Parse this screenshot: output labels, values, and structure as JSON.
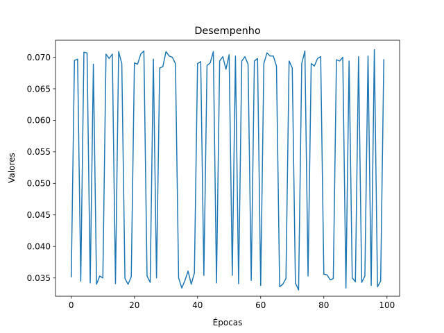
{
  "chart_data": {
    "type": "line",
    "title": "Desempenho",
    "xlabel": "Épocas",
    "ylabel": "Valores",
    "xlim": [
      -5,
      104
    ],
    "ylim": [
      0.0321,
      0.0727
    ],
    "xticks": [
      0,
      20,
      40,
      60,
      80,
      100
    ],
    "yticks": [
      0.035,
      0.04,
      0.045,
      0.05,
      0.055,
      0.06,
      0.065,
      0.07
    ],
    "ytick_labels": [
      "0.035",
      "0.040",
      "0.045",
      "0.050",
      "0.055",
      "0.060",
      "0.065",
      "0.070"
    ],
    "grid": false,
    "series": [
      {
        "color": "#1f77b4",
        "x": [
          0,
          1,
          2,
          3,
          4,
          5,
          6,
          7,
          8,
          9,
          10,
          11,
          12,
          13,
          14,
          15,
          16,
          17,
          18,
          19,
          20,
          21,
          22,
          23,
          24,
          25,
          26,
          27,
          28,
          29,
          30,
          31,
          32,
          33,
          34,
          35,
          36,
          37,
          38,
          39,
          40,
          41,
          42,
          43,
          44,
          45,
          46,
          47,
          48,
          49,
          50,
          51,
          52,
          53,
          54,
          55,
          56,
          57,
          58,
          59,
          60,
          61,
          62,
          63,
          64,
          65,
          66,
          67,
          68,
          69,
          70,
          71,
          72,
          73,
          74,
          75,
          76,
          77,
          78,
          79,
          80,
          81,
          82,
          83,
          84,
          85,
          86,
          87,
          88,
          89,
          90,
          91,
          92,
          93,
          94,
          95,
          96,
          97,
          98,
          99
        ],
        "values": [
          0.0352,
          0.0695,
          0.0697,
          0.0345,
          0.0708,
          0.0707,
          0.0342,
          0.0689,
          0.034,
          0.0353,
          0.035,
          0.0705,
          0.0698,
          0.0705,
          0.0341,
          0.0709,
          0.069,
          0.0349,
          0.034,
          0.0352,
          0.0691,
          0.0689,
          0.0705,
          0.071,
          0.0353,
          0.0343,
          0.0697,
          0.035,
          0.0683,
          0.0685,
          0.0709,
          0.0702,
          0.07,
          0.069,
          0.035,
          0.0334,
          0.0346,
          0.0361,
          0.034,
          0.0358,
          0.069,
          0.0693,
          0.0354,
          0.0687,
          0.0691,
          0.0709,
          0.0342,
          0.0694,
          0.0701,
          0.0681,
          0.0704,
          0.0354,
          0.0702,
          0.0341,
          0.0694,
          0.0701,
          0.0689,
          0.0346,
          0.0694,
          0.0698,
          0.0338,
          0.069,
          0.0707,
          0.0702,
          0.0702,
          0.0686,
          0.0336,
          0.034,
          0.0349,
          0.0694,
          0.0683,
          0.0342,
          0.0331,
          0.069,
          0.071,
          0.0353,
          0.069,
          0.0686,
          0.0698,
          0.0701,
          0.0356,
          0.0355,
          0.0347,
          0.0349,
          0.0696,
          0.0694,
          0.07,
          0.0334,
          0.0694,
          0.035,
          0.0344,
          0.0701,
          0.0343,
          0.0353,
          0.0702,
          0.0338,
          0.0712,
          0.0336,
          0.0345,
          0.0696
        ]
      }
    ]
  }
}
